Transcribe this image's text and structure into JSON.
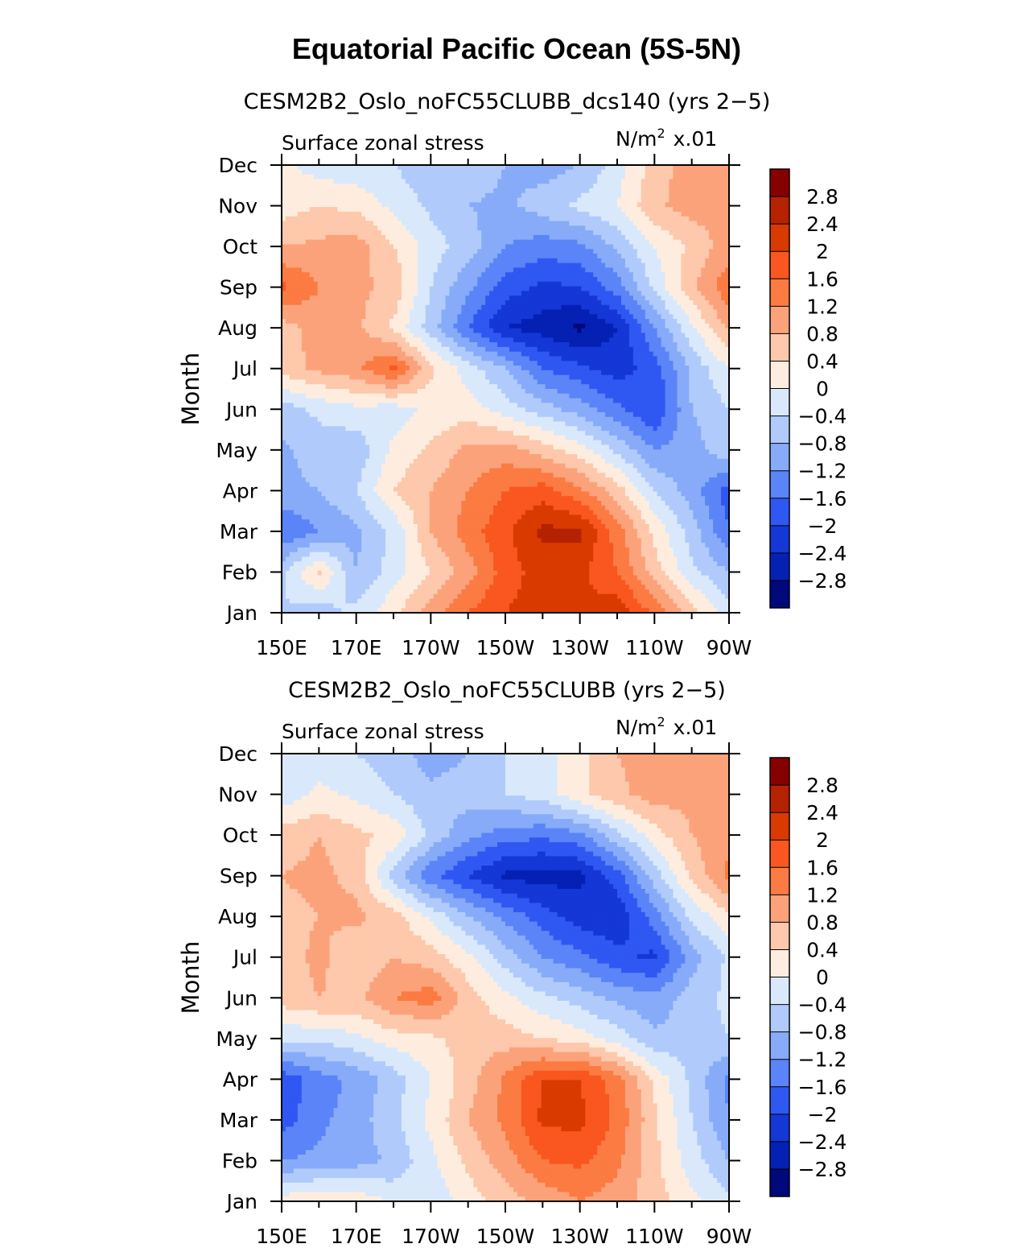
{
  "figure": {
    "title": "Equatorial Pacific Ocean (5S-5N)"
  },
  "colorbar": {
    "levels": [
      "2.8",
      "2.4",
      "2",
      "1.6",
      "1.2",
      "0.8",
      "0.4",
      "0",
      "−0.4",
      "−0.8",
      "−1.2",
      "−1.6",
      "−2",
      "−2.4",
      "−2.8"
    ],
    "colors": [
      "#870000",
      "#b52200",
      "#d93a00",
      "#f9571f",
      "#fb7b43",
      "#fca27a",
      "#fdc8ab",
      "#feeddf",
      "#d9e9fb",
      "#b0cbfb",
      "#87abf9",
      "#5a84f7",
      "#2f57f2",
      "#1437d6",
      "#0421b4",
      "#00087a"
    ]
  },
  "chart_data": [
    {
      "type": "heatmap",
      "subtitle": "CESM2B2_Oslo_noFC55CLUBB_dcs140 (yrs 2−5)",
      "left_string": "Surface zonal stress",
      "units_label": "N/m",
      "units_exp": "2",
      "units_scale": "x.01",
      "ylabel": "Month",
      "x_ticks": [
        "150E",
        "170E",
        "170W",
        "150W",
        "130W",
        "110W",
        "90W"
      ],
      "y_ticks": [
        "Jan",
        "Feb",
        "Mar",
        "Apr",
        "May",
        "Jun",
        "Jul",
        "Aug",
        "Sep",
        "Oct",
        "Nov",
        "Dec"
      ],
      "x_range_lon": [
        150,
        270
      ],
      "contour_levels": [
        -2.8,
        -2.4,
        -2,
        -1.6,
        -1.2,
        -0.8,
        -0.4,
        0,
        0.4,
        0.8,
        1.2,
        1.6,
        2,
        2.4,
        2.8
      ],
      "grid_lon": [
        150,
        160,
        170,
        180,
        190,
        200,
        210,
        220,
        230,
        240,
        250,
        260,
        270
      ],
      "values": [
        [
          -0.4,
          -0.6,
          -0.3,
          0.3,
          1.0,
          1.6,
          2.0,
          2.2,
          2.0,
          2.3,
          1.5,
          0.6,
          -0.2
        ],
        [
          -0.5,
          0.5,
          -0.8,
          -0.2,
          0.4,
          1.0,
          1.8,
          2.2,
          2.1,
          1.6,
          0.6,
          -0.3,
          -0.8
        ],
        [
          -1.6,
          -1.2,
          -0.9,
          -0.3,
          0.8,
          1.4,
          1.9,
          2.5,
          2.5,
          1.4,
          0.3,
          -0.6,
          -1.6
        ],
        [
          -0.9,
          -0.8,
          -0.4,
          0.4,
          0.8,
          1.2,
          1.6,
          1.8,
          1.3,
          0.6,
          -0.4,
          -1.0,
          -1.8
        ],
        [
          -0.9,
          -0.6,
          -0.7,
          0.1,
          0.5,
          0.9,
          1.0,
          0.6,
          0.2,
          -0.5,
          -1.2,
          -1.0,
          -0.5
        ],
        [
          -0.6,
          -0.3,
          -0.1,
          -0.2,
          0.1,
          0.2,
          -0.2,
          -0.6,
          -1.0,
          -1.5,
          -2.0,
          -0.8,
          -0.4
        ],
        [
          0.6,
          0.9,
          1.1,
          1.7,
          0.5,
          -0.2,
          -0.8,
          -1.6,
          -1.9,
          -2.2,
          -1.8,
          -0.7,
          0.0
        ],
        [
          0.6,
          1.0,
          0.9,
          0.3,
          -0.6,
          -1.6,
          -2.4,
          -2.6,
          -2.9,
          -2.4,
          -1.2,
          -0.1,
          0.9
        ],
        [
          1.7,
          1.2,
          0.9,
          0.7,
          -0.4,
          -1.1,
          -1.8,
          -2.1,
          -2.0,
          -1.4,
          -0.3,
          0.7,
          1.5
        ],
        [
          0.8,
          0.9,
          1.0,
          0.4,
          -0.2,
          -0.6,
          -1.2,
          -1.4,
          -1.3,
          -0.7,
          0.0,
          0.5,
          1.0
        ],
        [
          0.2,
          0.4,
          0.3,
          -0.1,
          -0.5,
          -0.8,
          -0.9,
          -0.6,
          -0.3,
          0.0,
          0.7,
          1.0,
          0.9
        ],
        [
          0.1,
          -0.2,
          -0.3,
          -0.4,
          -0.7,
          -0.5,
          -0.8,
          -1.0,
          -0.8,
          -0.2,
          0.6,
          1.0,
          1.0
        ]
      ]
    },
    {
      "type": "heatmap",
      "subtitle": "CESM2B2_Oslo_noFC55CLUBB (yrs 2−5)",
      "left_string": "Surface zonal stress",
      "units_label": "N/m",
      "units_exp": "2",
      "units_scale": "x.01",
      "ylabel": "Month",
      "x_ticks": [
        "150E",
        "170E",
        "170W",
        "150W",
        "130W",
        "110W",
        "90W"
      ],
      "y_ticks": [
        "Jan",
        "Feb",
        "Mar",
        "Apr",
        "May",
        "Jun",
        "Jul",
        "Aug",
        "Sep",
        "Oct",
        "Nov",
        "Dec"
      ],
      "x_range_lon": [
        150,
        270
      ],
      "contour_levels": [
        -2.8,
        -2.4,
        -2,
        -1.6,
        -1.2,
        -0.8,
        -0.4,
        0,
        0.4,
        0.8,
        1.2,
        1.6,
        2,
        2.4,
        2.8
      ],
      "grid_lon": [
        150,
        160,
        170,
        180,
        190,
        200,
        210,
        220,
        230,
        240,
        250,
        260,
        270
      ],
      "values": [
        [
          0.2,
          0.4,
          0.3,
          -0.1,
          -0.3,
          0.2,
          0.6,
          0.9,
          1.2,
          1.0,
          0.6,
          0.1,
          -0.3
        ],
        [
          -1.2,
          -1.1,
          -1.0,
          -0.7,
          -0.1,
          0.5,
          1.0,
          1.6,
          1.7,
          1.3,
          0.5,
          -0.2,
          -0.8
        ],
        [
          -1.8,
          -1.3,
          -1.0,
          -0.5,
          0.1,
          0.8,
          1.3,
          2.1,
          2.1,
          1.5,
          0.5,
          -0.4,
          -1.2
        ],
        [
          -1.9,
          -1.4,
          -1.1,
          -0.6,
          0.0,
          0.6,
          1.3,
          2.0,
          2.0,
          1.4,
          0.3,
          -0.5,
          -1.3
        ],
        [
          -0.3,
          -0.3,
          -0.1,
          0.2,
          0.3,
          0.6,
          0.6,
          0.4,
          0.2,
          -0.2,
          -0.7,
          -0.6,
          -0.4
        ],
        [
          0.6,
          0.8,
          0.7,
          1.2,
          1.4,
          0.6,
          0.1,
          -0.3,
          -0.6,
          -0.9,
          -1.1,
          -0.6,
          -0.3
        ],
        [
          0.6,
          0.9,
          0.5,
          0.8,
          0.6,
          0.1,
          -0.6,
          -1.2,
          -1.5,
          -1.9,
          -2.1,
          -1.0,
          -0.3
        ],
        [
          0.7,
          0.8,
          0.9,
          0.6,
          -0.1,
          -0.8,
          -1.3,
          -1.8,
          -2.2,
          -2.3,
          -1.4,
          -0.3,
          0.3
        ],
        [
          0.8,
          0.9,
          0.7,
          -0.6,
          -1.5,
          -2.0,
          -2.5,
          -2.6,
          -2.5,
          -1.8,
          -0.6,
          0.5,
          1.3
        ],
        [
          0.6,
          0.8,
          0.5,
          0.3,
          -0.5,
          -1.1,
          -1.4,
          -1.5,
          -1.3,
          -0.5,
          0.2,
          0.8,
          1.1
        ],
        [
          -0.3,
          0.1,
          -0.1,
          -0.4,
          -0.7,
          -0.6,
          -0.4,
          -0.2,
          0.3,
          0.7,
          1.0,
          0.9,
          0.8
        ],
        [
          -0.3,
          -0.2,
          -0.4,
          -0.6,
          -1.0,
          -0.8,
          -0.4,
          -0.2,
          0.3,
          0.8,
          1.0,
          1.0,
          1.0
        ]
      ]
    }
  ]
}
